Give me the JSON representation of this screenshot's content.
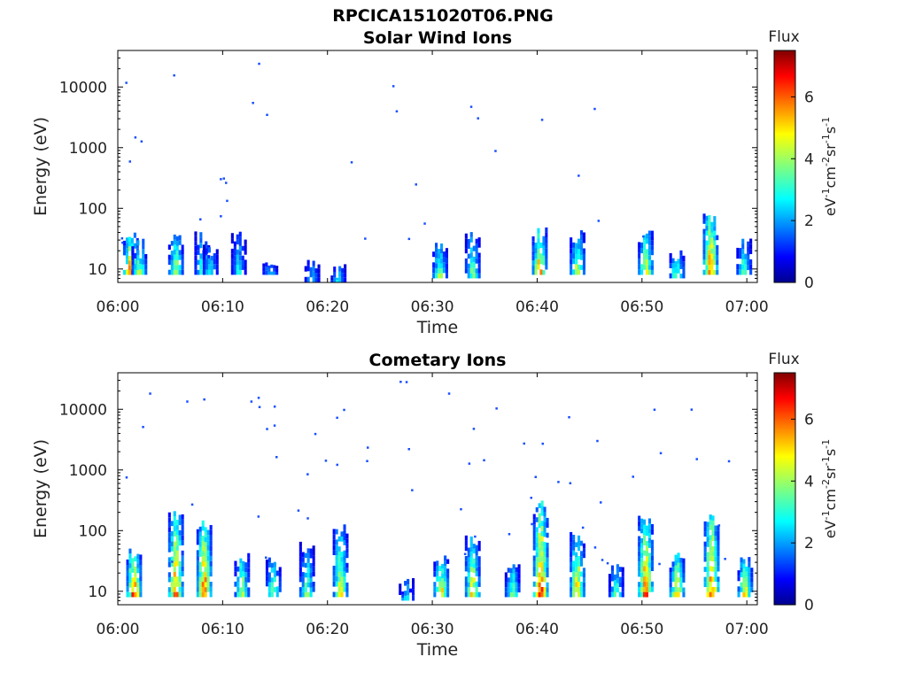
{
  "figure": {
    "main_title": "RPCICA151020T06.PNG"
  },
  "chart_data": [
    {
      "type": "heatmap",
      "title": "Solar Wind Ions",
      "xlabel": "Time",
      "ylabel": "Energy (eV)",
      "x_ticks": [
        "06:00",
        "06:10",
        "06:20",
        "06:30",
        "06:40",
        "06:50",
        "07:00"
      ],
      "x_range": [
        "06:00",
        "07:01"
      ],
      "y_scale": "log",
      "y_ticks": [
        "10",
        "100",
        "1000",
        "10000"
      ],
      "y_range": [
        6,
        40000
      ],
      "colorbar": {
        "title": "Flux",
        "label": "eV-1cm-2sr-1s-1",
        "ticks": [
          "0",
          "2",
          "4",
          "6"
        ],
        "range": [
          0,
          7.5
        ],
        "colormap": "jet"
      },
      "events": [
        {
          "t": 1.2,
          "emin": 8,
          "emax": 45,
          "flux": 6.5
        },
        {
          "t": 2.0,
          "emin": 8,
          "emax": 30,
          "flux": 4.5
        },
        {
          "t": 5.5,
          "emin": 8,
          "emax": 40,
          "flux": 4.8
        },
        {
          "t": 8.0,
          "emin": 8,
          "emax": 40,
          "flux": 4.0
        },
        {
          "t": 8.8,
          "emin": 8,
          "emax": 25,
          "flux": 3.5
        },
        {
          "t": 11.5,
          "emin": 8,
          "emax": 40,
          "flux": 3.2
        },
        {
          "t": 14.5,
          "emin": 8,
          "emax": 15,
          "flux": 3.0
        },
        {
          "t": 18.5,
          "emin": 6,
          "emax": 15,
          "flux": 2.8
        },
        {
          "t": 21.0,
          "emin": 6,
          "emax": 12,
          "flux": 3.0
        },
        {
          "t": 30.7,
          "emin": 7,
          "emax": 25,
          "flux": 4.5
        },
        {
          "t": 33.8,
          "emin": 7,
          "emax": 40,
          "flux": 4.2
        },
        {
          "t": 40.2,
          "emin": 8,
          "emax": 45,
          "flux": 6.2
        },
        {
          "t": 43.8,
          "emin": 8,
          "emax": 40,
          "flux": 5.0
        },
        {
          "t": 50.3,
          "emin": 8,
          "emax": 40,
          "flux": 5.5
        },
        {
          "t": 53.3,
          "emin": 7,
          "emax": 20,
          "flux": 4.6
        },
        {
          "t": 56.5,
          "emin": 8,
          "emax": 80,
          "flux": 6.8
        },
        {
          "t": 59.7,
          "emin": 8,
          "emax": 30,
          "flux": 4.0
        }
      ]
    },
    {
      "type": "heatmap",
      "title": "Cometary Ions",
      "xlabel": "Time",
      "ylabel": "Energy (eV)",
      "x_ticks": [
        "06:00",
        "06:10",
        "06:20",
        "06:30",
        "06:40",
        "06:50",
        "07:00"
      ],
      "x_range": [
        "06:00",
        "07:01"
      ],
      "y_scale": "log",
      "y_ticks": [
        "10",
        "100",
        "1000",
        "10000"
      ],
      "y_range": [
        6,
        40000
      ],
      "colorbar": {
        "title": "Flux",
        "label": "eV-1cm-2sr-1s-1",
        "ticks": [
          "0",
          "2",
          "4",
          "6"
        ],
        "range": [
          0,
          7.5
        ],
        "colormap": "jet"
      },
      "events": [
        {
          "t": 1.5,
          "emin": 8,
          "emax": 50,
          "flux": 6.8
        },
        {
          "t": 5.5,
          "emin": 8,
          "emax": 200,
          "flux": 6.5
        },
        {
          "t": 8.2,
          "emin": 8,
          "emax": 150,
          "flux": 6.8
        },
        {
          "t": 11.8,
          "emin": 8,
          "emax": 40,
          "flux": 5.0
        },
        {
          "t": 14.8,
          "emin": 8,
          "emax": 35,
          "flux": 4.5
        },
        {
          "t": 18.0,
          "emin": 8,
          "emax": 60,
          "flux": 4.2
        },
        {
          "t": 21.2,
          "emin": 8,
          "emax": 120,
          "flux": 5.2
        },
        {
          "t": 27.5,
          "emin": 7,
          "emax": 15,
          "flux": 3.2
        },
        {
          "t": 30.8,
          "emin": 8,
          "emax": 40,
          "flux": 5.8
        },
        {
          "t": 33.8,
          "emin": 8,
          "emax": 80,
          "flux": 5.5
        },
        {
          "t": 37.6,
          "emin": 8,
          "emax": 30,
          "flux": 4.2
        },
        {
          "t": 40.3,
          "emin": 8,
          "emax": 300,
          "flux": 7.0
        },
        {
          "t": 43.8,
          "emin": 8,
          "emax": 90,
          "flux": 6.0
        },
        {
          "t": 47.5,
          "emin": 8,
          "emax": 30,
          "flux": 4.0
        },
        {
          "t": 50.3,
          "emin": 8,
          "emax": 200,
          "flux": 6.8
        },
        {
          "t": 53.3,
          "emin": 8,
          "emax": 40,
          "flux": 5.8
        },
        {
          "t": 56.6,
          "emin": 8,
          "emax": 200,
          "flux": 7.0
        },
        {
          "t": 59.8,
          "emin": 8,
          "emax": 35,
          "flux": 5.5
        }
      ]
    }
  ]
}
